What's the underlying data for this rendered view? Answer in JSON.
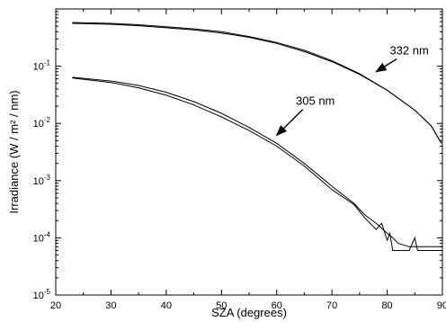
{
  "chart_data": {
    "type": "line",
    "xlabel": "SZA (degrees)",
    "ylabel": "Irradiance (W / m² / nm)",
    "xlim": [
      20,
      90
    ],
    "ylim_log10": [
      -5,
      0
    ],
    "y_scale": "log",
    "grid": false,
    "x_ticks": [
      "20",
      "30",
      "40",
      "50",
      "60",
      "70",
      "80",
      "90"
    ],
    "y_ticks": [
      {
        "base": "10",
        "exp": "-5"
      },
      {
        "base": "10",
        "exp": "-4"
      },
      {
        "base": "10",
        "exp": "-3"
      },
      {
        "base": "10",
        "exp": "-2"
      },
      {
        "base": "10",
        "exp": "-1"
      }
    ],
    "annotations": [
      {
        "text": "332 nm",
        "x": 84,
        "y": 0.16,
        "arrow_to_x": 78,
        "arrow_to_y": 0.08
      },
      {
        "text": "305 nm",
        "x": 67,
        "y": 0.021,
        "arrow_to_x": 60,
        "arrow_to_y": 0.0062
      }
    ],
    "series": [
      {
        "x": [
          23,
          30,
          35,
          40,
          45,
          50,
          55,
          60,
          65,
          70,
          75,
          80,
          85,
          88,
          89.8
        ],
        "y": [
          0.58,
          0.56,
          0.53,
          0.49,
          0.45,
          0.4,
          0.33,
          0.26,
          0.19,
          0.125,
          0.074,
          0.038,
          0.017,
          0.009,
          0.0045
        ]
      },
      {
        "x": [
          23,
          30,
          35,
          40,
          45,
          50,
          55,
          60,
          65,
          70,
          75,
          80,
          85,
          88,
          89.8
        ],
        "y": [
          0.56,
          0.54,
          0.51,
          0.47,
          0.43,
          0.38,
          0.32,
          0.25,
          0.18,
          0.12,
          0.072,
          0.038,
          0.017,
          0.009,
          0.0045
        ]
      },
      {
        "x": [
          23,
          30,
          35,
          40,
          45,
          50,
          55,
          60,
          65,
          70,
          74,
          76,
          78,
          80,
          81,
          82,
          84,
          86,
          90
        ],
        "y": [
          0.064,
          0.055,
          0.046,
          0.035,
          0.024,
          0.015,
          0.0085,
          0.0045,
          0.002,
          0.0008,
          0.0004,
          0.00025,
          0.00018,
          0.00012,
          0.0001,
          8e-05,
          7e-05,
          7e-05,
          7e-05
        ]
      },
      {
        "x": [
          23,
          30,
          35,
          40,
          45,
          50,
          55,
          60,
          65,
          70,
          74,
          76,
          78,
          79,
          80,
          80.5,
          81,
          82,
          84,
          85,
          85.5,
          86,
          90
        ],
        "y": [
          0.062,
          0.052,
          0.042,
          0.031,
          0.021,
          0.013,
          0.0075,
          0.004,
          0.0018,
          0.0007,
          0.00038,
          0.00022,
          0.00014,
          0.00018,
          9e-05,
          0.00012,
          6e-05,
          6e-05,
          6e-05,
          0.0001,
          6e-05,
          6e-05,
          6e-05
        ]
      }
    ]
  }
}
